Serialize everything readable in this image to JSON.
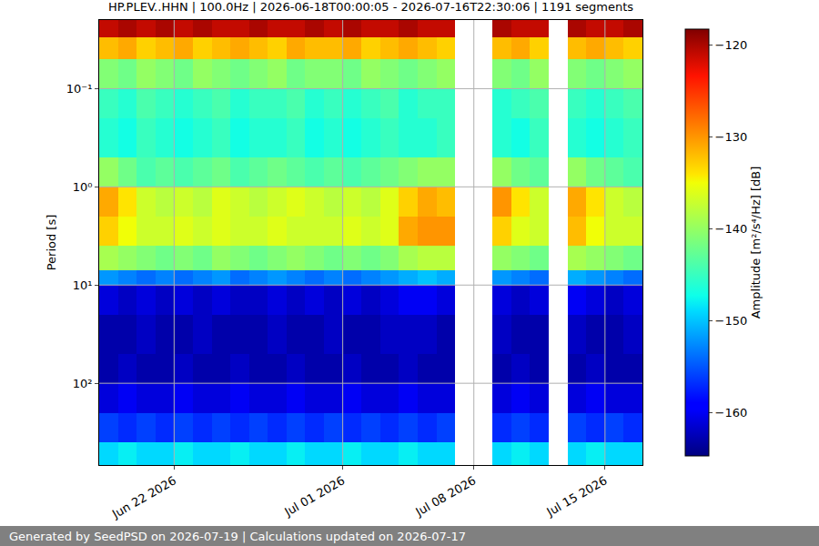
{
  "chart_data": {
    "type": "heatmap",
    "title": "HP.PLEV..HHN | 100.0Hz | 2026-06-18T00:00:05 - 2026-07-16T22:30:06 | 1191 segments",
    "footer": "Generated by SeedPSD on 2026-07-19 | Calculations updated on 2026-07-17",
    "ylabel": "Period [s]",
    "day_edges": [
      "2026-06-18",
      "2026-06-19",
      "2026-06-20",
      "2026-06-21",
      "2026-06-22",
      "2026-06-23",
      "2026-06-24",
      "2026-06-25",
      "2026-06-26",
      "2026-06-27",
      "2026-06-28",
      "2026-06-29",
      "2026-06-30",
      "2026-07-01",
      "2026-07-02",
      "2026-07-03",
      "2026-07-04",
      "2026-07-05",
      "2026-07-06",
      "2026-07-07",
      "2026-07-08",
      "2026-07-09",
      "2026-07-10",
      "2026-07-11",
      "2026-07-12",
      "2026-07-13",
      "2026-07-14",
      "2026-07-15",
      "2026-07-16",
      "2026-07-17"
    ],
    "period_edges": [
      0.02,
      0.03,
      0.05,
      0.1,
      0.2,
      0.5,
      1,
      2,
      4,
      7,
      10,
      20,
      50,
      100,
      200,
      400,
      680
    ],
    "z": [
      [
        -121,
        -120,
        -121,
        -120,
        -121,
        -120,
        -121,
        -121,
        -120,
        -121,
        -121,
        -120,
        -121,
        -120,
        -121,
        -121,
        -120,
        -121,
        -121,
        null,
        null,
        -120,
        -121,
        -121,
        null,
        -120,
        -121,
        -121,
        -120
      ],
      [
        -132,
        -131,
        -133,
        -132,
        -131,
        -133,
        -132,
        -131,
        -132,
        -133,
        -131,
        -132,
        -132,
        -131,
        -133,
        -132,
        -131,
        -132,
        -133,
        null,
        null,
        -132,
        -131,
        -133,
        null,
        -132,
        -131,
        -132,
        -133
      ],
      [
        -141,
        -142,
        -140,
        -141,
        -142,
        -140,
        -141,
        -142,
        -141,
        -140,
        -142,
        -141,
        -141,
        -142,
        -140,
        -141,
        -142,
        -141,
        -140,
        null,
        null,
        -141,
        -142,
        -140,
        null,
        -141,
        -142,
        -141,
        -140
      ],
      [
        -145,
        -146,
        -144,
        -145,
        -146,
        -145,
        -144,
        -146,
        -145,
        -145,
        -144,
        -146,
        -145,
        -146,
        -145,
        -144,
        -146,
        -145,
        -145,
        null,
        null,
        -146,
        -145,
        -144,
        null,
        -145,
        -146,
        -145,
        -144
      ],
      [
        -146,
        -147,
        -145,
        -146,
        -147,
        -146,
        -145,
        -147,
        -146,
        -146,
        -145,
        -147,
        -146,
        -147,
        -146,
        -145,
        -146,
        -146,
        -145,
        null,
        null,
        -146,
        -147,
        -145,
        null,
        -146,
        -147,
        -146,
        -145
      ],
      [
        -140,
        -142,
        -144,
        -143,
        -144,
        -143,
        -142,
        -144,
        -143,
        -142,
        -143,
        -144,
        -143,
        -144,
        -143,
        -142,
        -141,
        -140,
        -140,
        null,
        null,
        -140,
        -142,
        -143,
        null,
        -140,
        -142,
        -143,
        -144
      ],
      [
        -131,
        -134,
        -137,
        -138,
        -137,
        -138,
        -136,
        -137,
        -138,
        -137,
        -136,
        -137,
        -138,
        -137,
        -138,
        -136,
        -133,
        -131,
        -132,
        null,
        null,
        -130,
        -134,
        -137,
        null,
        -131,
        -134,
        -137,
        -138
      ],
      [
        -133,
        -135,
        -137,
        -137,
        -136,
        -137,
        -136,
        -137,
        -137,
        -136,
        -137,
        -137,
        -137,
        -136,
        -137,
        -136,
        -131,
        -130,
        -130,
        null,
        null,
        -133,
        -136,
        -137,
        null,
        -132,
        -135,
        -137,
        -137
      ],
      [
        -139,
        -140,
        -141,
        -142,
        -141,
        -142,
        -140,
        -141,
        -142,
        -141,
        -140,
        -141,
        -142,
        -141,
        -142,
        -141,
        -139,
        -138,
        -138,
        null,
        null,
        -140,
        -141,
        -142,
        null,
        -139,
        -140,
        -141,
        -142
      ],
      [
        -152,
        -153,
        -154,
        -153,
        -154,
        -153,
        -152,
        -154,
        -153,
        -152,
        -153,
        -154,
        -153,
        -154,
        -153,
        -152,
        -151,
        -150,
        -151,
        null,
        null,
        -152,
        -153,
        -154,
        null,
        -151,
        -152,
        -153,
        -154
      ],
      [
        -161,
        -162,
        -161,
        -162,
        -161,
        -162,
        -161,
        -162,
        -162,
        -161,
        -162,
        -161,
        -162,
        -161,
        -162,
        -161,
        -160,
        -160,
        -161,
        null,
        null,
        -161,
        -162,
        -161,
        null,
        -160,
        -161,
        -162,
        -161
      ],
      [
        -163,
        -163,
        -162,
        -163,
        -163,
        -162,
        -163,
        -163,
        -163,
        -162,
        -163,
        -163,
        -162,
        -163,
        -163,
        -162,
        -162,
        -162,
        -163,
        null,
        null,
        -162,
        -163,
        -163,
        null,
        -162,
        -163,
        -163,
        -162
      ],
      [
        -163,
        -162,
        -163,
        -163,
        -162,
        -163,
        -163,
        -162,
        -163,
        -163,
        -162,
        -163,
        -163,
        -162,
        -163,
        -163,
        -162,
        -163,
        -163,
        null,
        null,
        -163,
        -162,
        -163,
        null,
        -163,
        -162,
        -163,
        -163
      ],
      [
        -161,
        -160,
        -161,
        -161,
        -160,
        -161,
        -161,
        -160,
        -161,
        -161,
        -160,
        -161,
        -161,
        -160,
        -161,
        -161,
        -160,
        -161,
        -161,
        null,
        null,
        -161,
        -160,
        -161,
        null,
        -161,
        -160,
        -161,
        -161
      ],
      [
        -156,
        -157,
        -156,
        -157,
        -156,
        -157,
        -156,
        -157,
        -156,
        -157,
        -156,
        -157,
        -156,
        -157,
        -156,
        -157,
        -156,
        -157,
        -156,
        null,
        null,
        -157,
        -156,
        -157,
        null,
        -156,
        -157,
        -156,
        -157
      ],
      [
        -149,
        -148,
        -149,
        -149,
        -148,
        -149,
        -149,
        -148,
        -149,
        -149,
        -148,
        -149,
        -149,
        -148,
        -149,
        -149,
        -148,
        -149,
        -149,
        null,
        null,
        -149,
        -148,
        -149,
        null,
        -149,
        -148,
        -149,
        -149
      ]
    ],
    "xlim": [
      "2026-06-18",
      "2026-07-17"
    ],
    "xticks": [
      {
        "value": "2026-06-22",
        "label": "Jun 22 2026"
      },
      {
        "value": "2026-07-01",
        "label": "Jul 01 2026"
      },
      {
        "value": "2026-07-08",
        "label": "Jul 08 2026"
      },
      {
        "value": "2026-07-15",
        "label": "Jul 15 2026"
      }
    ],
    "ylim": [
      0.02,
      680
    ],
    "yticks": [
      {
        "value": 0.1,
        "label": "10⁻¹"
      },
      {
        "value": 1,
        "label": "10⁰"
      },
      {
        "value": 10,
        "label": "10¹"
      },
      {
        "value": 100,
        "label": "10²"
      }
    ],
    "log": "y",
    "grid": true,
    "colorbar": {
      "title": "Amplitude [m²/s⁴/Hz] [dB]",
      "range": [
        -164.7,
        -118.3
      ],
      "ticks": [
        {
          "value": -120,
          "label": "−120"
        },
        {
          "value": -130,
          "label": "−130"
        },
        {
          "value": -140,
          "label": "−140"
        },
        {
          "value": -150,
          "label": "−150"
        },
        {
          "value": -160,
          "label": "−160"
        }
      ]
    }
  }
}
